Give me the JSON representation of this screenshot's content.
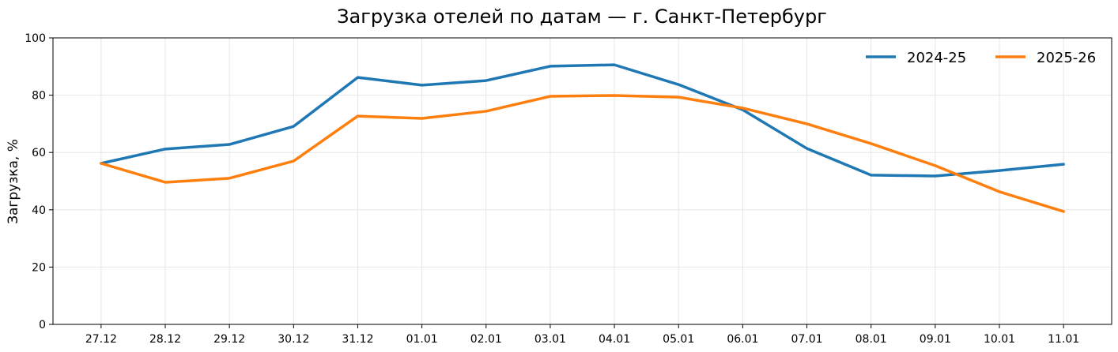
{
  "chart_data": {
    "type": "line",
    "title": "Загрузка отелей по датам — г. Санкт-Петербург",
    "xlabel": "",
    "ylabel": "Загрузка, %",
    "categories": [
      "27.12",
      "28.12",
      "29.12",
      "30.12",
      "31.12",
      "01.01",
      "02.01",
      "03.01",
      "04.01",
      "05.01",
      "06.01",
      "07.01",
      "08.01",
      "09.01",
      "10.01",
      "11.01"
    ],
    "ylim": [
      0,
      100
    ],
    "yticks": [
      0,
      20,
      40,
      60,
      80,
      100
    ],
    "grid": true,
    "legend": "top-right",
    "series": [
      {
        "name": "2024-25",
        "color": "#1f77b4",
        "values": [
          56.2,
          61.2,
          62.8,
          69.1,
          86.2,
          83.5,
          85.1,
          90.1,
          90.6,
          83.7,
          74.9,
          61.4,
          52.1,
          51.8,
          53.7,
          55.9
        ]
      },
      {
        "name": "2025-26",
        "color": "#ff7f0e",
        "values": [
          56.2,
          49.6,
          51.0,
          57.0,
          72.7,
          71.9,
          74.4,
          79.6,
          79.9,
          79.3,
          75.5,
          70.0,
          63.1,
          55.4,
          46.3,
          39.4
        ]
      }
    ]
  }
}
